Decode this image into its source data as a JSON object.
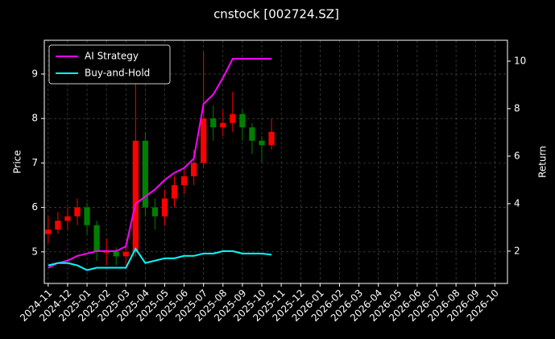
{
  "chart_data": {
    "type": "candlestick",
    "title": "cnstock [002724.SZ]",
    "ylabel": "Price",
    "y2label": "Return",
    "x": [
      0,
      0.5,
      1,
      1.5,
      2,
      2.5,
      3,
      3.5,
      4,
      4.5,
      5,
      5.5,
      6,
      6.5,
      7,
      7.5,
      8,
      8.5,
      9,
      9.5,
      10,
      10.5,
      11,
      11.5
    ],
    "open": [
      5.4,
      5.5,
      5.7,
      5.8,
      6.0,
      5.6,
      5.0,
      5.0,
      4.9,
      5.0,
      7.5,
      6.0,
      5.8,
      6.2,
      6.5,
      6.7,
      7.0,
      8.0,
      7.8,
      7.9,
      8.1,
      7.8,
      7.5,
      7.4
    ],
    "high": [
      5.8,
      5.9,
      6.0,
      6.2,
      6.1,
      5.7,
      5.3,
      5.1,
      5.2,
      9.0,
      7.7,
      6.2,
      6.4,
      6.7,
      6.9,
      7.3,
      9.5,
      8.3,
      8.2,
      8.6,
      8.2,
      7.9,
      7.6,
      8.0
    ],
    "low": [
      5.2,
      5.4,
      5.5,
      5.6,
      5.4,
      4.8,
      4.7,
      4.7,
      4.7,
      4.9,
      5.8,
      5.5,
      5.6,
      6.0,
      6.3,
      6.5,
      6.9,
      7.5,
      7.6,
      7.7,
      7.5,
      7.2,
      7.0,
      7.3
    ],
    "close": [
      5.5,
      5.7,
      5.8,
      6.0,
      5.6,
      5.0,
      5.0,
      4.9,
      5.0,
      7.5,
      6.0,
      5.8,
      6.2,
      6.5,
      6.7,
      7.0,
      8.0,
      7.8,
      7.9,
      8.1,
      7.8,
      7.5,
      7.4,
      7.7
    ],
    "up_color": "#ff0000",
    "down_color": "#008000",
    "series": [
      {
        "name": "AI Strategy",
        "color": "#ff00ff",
        "axis": "y2",
        "values": [
          1.3,
          1.5,
          1.6,
          1.8,
          1.9,
          2.0,
          2.0,
          2.0,
          2.2,
          4.0,
          4.3,
          4.6,
          5.0,
          5.3,
          5.5,
          5.9,
          8.2,
          8.6,
          9.3,
          10.1,
          10.1,
          10.1,
          10.1,
          10.1
        ]
      },
      {
        "name": "Buy-and-Hold",
        "color": "#00ffff",
        "axis": "y2",
        "values": [
          1.4,
          1.5,
          1.5,
          1.4,
          1.2,
          1.3,
          1.3,
          1.3,
          1.3,
          2.1,
          1.5,
          1.6,
          1.7,
          1.7,
          1.8,
          1.8,
          1.9,
          1.9,
          2.0,
          2.0,
          1.9,
          1.9,
          1.9,
          1.85
        ]
      }
    ],
    "xlim": [
      -0.2,
      23.65
    ],
    "xticks": [
      {
        "value": 0,
        "label": "2024-11"
      },
      {
        "value": 1,
        "label": "2024-12"
      },
      {
        "value": 2,
        "label": "2025-01"
      },
      {
        "value": 3,
        "label": "2025-02"
      },
      {
        "value": 4,
        "label": "2025-03"
      },
      {
        "value": 5,
        "label": "2025-04"
      },
      {
        "value": 6,
        "label": "2025-05"
      },
      {
        "value": 7,
        "label": "2025-06"
      },
      {
        "value": 8,
        "label": "2025-07"
      },
      {
        "value": 9,
        "label": "2025-08"
      },
      {
        "value": 10,
        "label": "2025-09"
      },
      {
        "value": 11,
        "label": "2025-10"
      },
      {
        "value": 12,
        "label": "2025-11"
      },
      {
        "value": 13,
        "label": "2025-12"
      },
      {
        "value": 14,
        "label": "2026-01"
      },
      {
        "value": 15,
        "label": "2026-02"
      },
      {
        "value": 16,
        "label": "2026-03"
      },
      {
        "value": 17,
        "label": "2026-04"
      },
      {
        "value": 18,
        "label": "2026-05"
      },
      {
        "value": 19,
        "label": "2026-06"
      },
      {
        "value": 20,
        "label": "2026-07"
      },
      {
        "value": 21,
        "label": "2026-08"
      },
      {
        "value": 22,
        "label": "2026-09"
      },
      {
        "value": 23,
        "label": "2026-10"
      }
    ],
    "ylim": [
      4.29,
      9.76
    ],
    "yticks": [
      5,
      6,
      7,
      8,
      9
    ],
    "y2lim": [
      0.64,
      10.88
    ],
    "y2ticks": [
      2,
      4,
      6,
      8,
      10
    ],
    "grid": true,
    "legend": "upper left"
  }
}
